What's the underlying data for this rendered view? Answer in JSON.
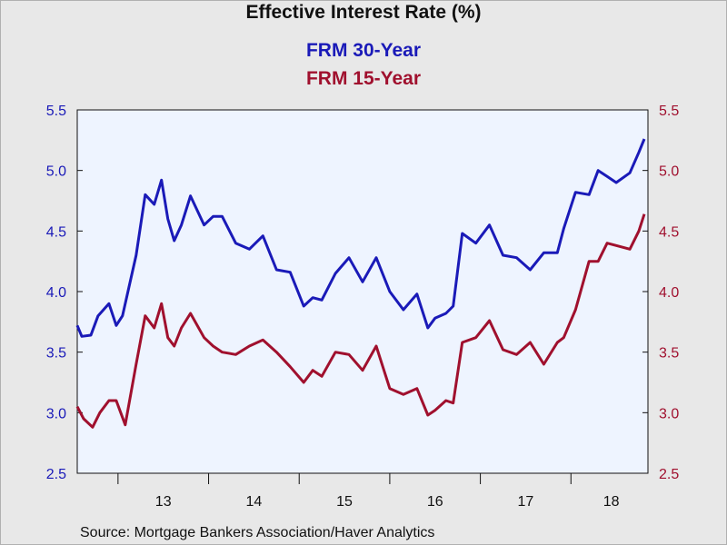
{
  "chart_data": {
    "type": "line",
    "title": "Effective Interest Rate (%)",
    "source": "Source:  Mortgage Bankers Association/Haver Analytics",
    "x_tick_labels": [
      "13",
      "14",
      "15",
      "16",
      "17",
      "18"
    ],
    "x_range": [
      2012.55,
      2018.85
    ],
    "ylim": [
      2.5,
      5.5
    ],
    "y_ticks": [
      "2.5",
      "3.0",
      "3.5",
      "4.0",
      "4.5",
      "5.0",
      "5.5"
    ],
    "grid": false,
    "series": [
      {
        "name": "FRM 30-Year",
        "axis": "left",
        "color": "#1a1ab8",
        "x": [
          2012.55,
          2012.6,
          2012.7,
          2012.78,
          2012.9,
          2012.98,
          2013.05,
          2013.2,
          2013.3,
          2013.4,
          2013.48,
          2013.55,
          2013.62,
          2013.7,
          2013.8,
          2013.95,
          2014.05,
          2014.15,
          2014.3,
          2014.45,
          2014.6,
          2014.75,
          2014.9,
          2015.05,
          2015.15,
          2015.25,
          2015.4,
          2015.55,
          2015.7,
          2015.85,
          2016.0,
          2016.15,
          2016.3,
          2016.42,
          2016.5,
          2016.62,
          2016.7,
          2016.8,
          2016.95,
          2017.1,
          2017.25,
          2017.4,
          2017.55,
          2017.7,
          2017.85,
          2017.92,
          2018.05,
          2018.2,
          2018.3,
          2018.4,
          2018.5,
          2018.65,
          2018.75,
          2018.81
        ],
        "values": [
          3.72,
          3.63,
          3.64,
          3.8,
          3.9,
          3.72,
          3.8,
          4.3,
          4.8,
          4.72,
          4.92,
          4.6,
          4.42,
          4.55,
          4.79,
          4.55,
          4.62,
          4.62,
          4.4,
          4.35,
          4.46,
          4.18,
          4.16,
          3.88,
          3.95,
          3.93,
          4.15,
          4.28,
          4.08,
          4.28,
          4.0,
          3.85,
          3.98,
          3.7,
          3.78,
          3.82,
          3.88,
          4.48,
          4.4,
          4.55,
          4.3,
          4.28,
          4.18,
          4.32,
          4.32,
          4.52,
          4.82,
          4.8,
          5.0,
          4.95,
          4.9,
          4.98,
          5.15,
          5.26
        ]
      },
      {
        "name": "FRM 15-Year",
        "axis": "right",
        "color": "#a0102e",
        "x": [
          2012.55,
          2012.62,
          2012.72,
          2012.8,
          2012.9,
          2012.98,
          2013.08,
          2013.2,
          2013.3,
          2013.4,
          2013.48,
          2013.55,
          2013.62,
          2013.7,
          2013.8,
          2013.95,
          2014.05,
          2014.15,
          2014.3,
          2014.45,
          2014.6,
          2014.75,
          2014.9,
          2015.05,
          2015.15,
          2015.25,
          2015.4,
          2015.55,
          2015.7,
          2015.85,
          2016.0,
          2016.15,
          2016.3,
          2016.42,
          2016.5,
          2016.62,
          2016.7,
          2016.8,
          2016.95,
          2017.1,
          2017.25,
          2017.4,
          2017.55,
          2017.7,
          2017.85,
          2017.92,
          2018.05,
          2018.2,
          2018.3,
          2018.4,
          2018.5,
          2018.65,
          2018.75,
          2018.81
        ],
        "values": [
          3.05,
          2.95,
          2.88,
          3.0,
          3.1,
          3.1,
          2.9,
          3.4,
          3.8,
          3.7,
          3.9,
          3.62,
          3.55,
          3.7,
          3.82,
          3.62,
          3.55,
          3.5,
          3.48,
          3.55,
          3.6,
          3.5,
          3.38,
          3.25,
          3.35,
          3.3,
          3.5,
          3.48,
          3.35,
          3.55,
          3.2,
          3.15,
          3.2,
          2.98,
          3.02,
          3.1,
          3.08,
          3.58,
          3.62,
          3.76,
          3.52,
          3.48,
          3.58,
          3.4,
          3.58,
          3.62,
          3.85,
          4.25,
          4.25,
          4.4,
          4.38,
          4.35,
          4.5,
          4.64
        ]
      }
    ]
  }
}
